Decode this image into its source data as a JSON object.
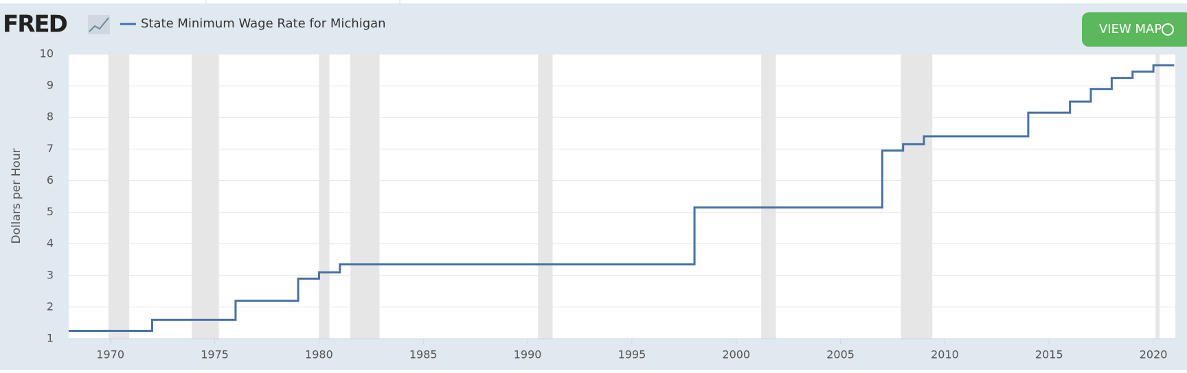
{
  "header": {
    "logo": "FRED",
    "button": "VIEW MAP"
  },
  "chart_data": {
    "type": "line",
    "step": true,
    "y_label": "Dollars per Hour",
    "x": [
      1968,
      1972,
      1976,
      1979,
      1980,
      1981,
      1998,
      2007,
      2008,
      2009,
      2014,
      2016,
      2017,
      2018,
      2019,
      2020,
      2021
    ],
    "series": [
      {
        "name": "State Minimum Wage Rate for Michigan",
        "color": "#4572a7",
        "values": [
          1.25,
          1.6,
          2.2,
          2.9,
          3.1,
          3.35,
          5.15,
          6.95,
          7.15,
          7.4,
          8.15,
          8.5,
          8.9,
          9.25,
          9.45,
          9.65,
          9.65
        ]
      }
    ],
    "recessions": [
      [
        1969.9,
        1970.9
      ],
      [
        1973.9,
        1975.2
      ],
      [
        1980.0,
        1980.5
      ],
      [
        1981.5,
        1982.9
      ],
      [
        1990.5,
        1991.2
      ],
      [
        2001.2,
        2001.9
      ],
      [
        2007.9,
        2009.4
      ],
      [
        2020.1,
        2020.3
      ]
    ],
    "recession_color": "#e6e6e6",
    "xlim": [
      1968,
      2021.05
    ],
    "xticks": [
      1970,
      1975,
      1980,
      1985,
      1990,
      1995,
      2000,
      2005,
      2010,
      2015,
      2020
    ],
    "ylim": [
      1,
      10
    ],
    "yticks": [
      1,
      2,
      3,
      4,
      5,
      6,
      7,
      8,
      9,
      10
    ],
    "grid": true
  }
}
